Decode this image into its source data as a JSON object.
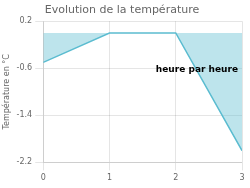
{
  "chart_data": {
    "type": "area",
    "title": "Evolution de la température",
    "y_label": "Température en °C",
    "x": [
      0,
      1,
      2,
      3
    ],
    "values": [
      -0.5,
      0.0,
      0.0,
      -2.0
    ],
    "color": "#5bbcd0",
    "xlim": [
      0,
      3
    ],
    "xticks": [
      0,
      1,
      2,
      3
    ],
    "ylim": [
      -2.2,
      0.2
    ],
    "yticks": [
      0.2,
      -0.6,
      -1.4,
      -2.2
    ],
    "grid": true,
    "annotations": [
      {
        "text": "heure par heure",
        "x": 1.7,
        "y": -0.55
      }
    ]
  }
}
